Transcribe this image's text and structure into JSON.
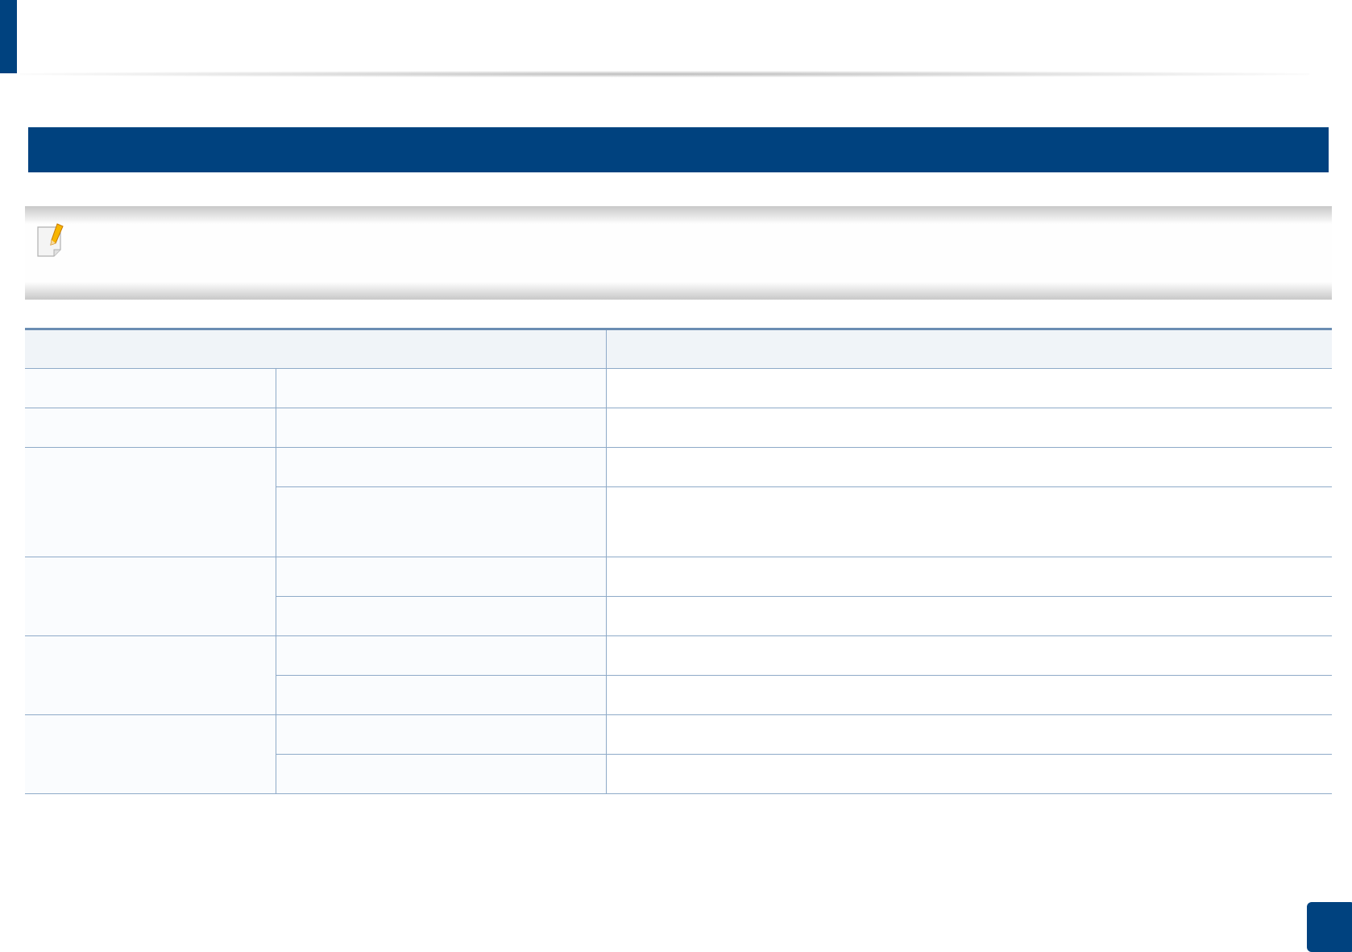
{
  "header": {
    "title": "",
    "accent_color": "#00427f"
  },
  "section": {
    "title": ""
  },
  "note": {
    "icon": "note-pencil-icon",
    "text": ""
  },
  "table": {
    "headers": [
      "",
      ""
    ],
    "rows": [
      [
        "",
        "",
        ""
      ],
      [
        "",
        "",
        ""
      ],
      [
        "",
        "",
        ""
      ],
      [
        "",
        ""
      ],
      [
        "",
        "",
        ""
      ],
      [
        "",
        ""
      ],
      [
        "",
        "",
        ""
      ],
      [
        "",
        ""
      ],
      [
        "",
        "",
        ""
      ],
      [
        "",
        ""
      ]
    ]
  },
  "footer": {
    "page_number": ""
  }
}
